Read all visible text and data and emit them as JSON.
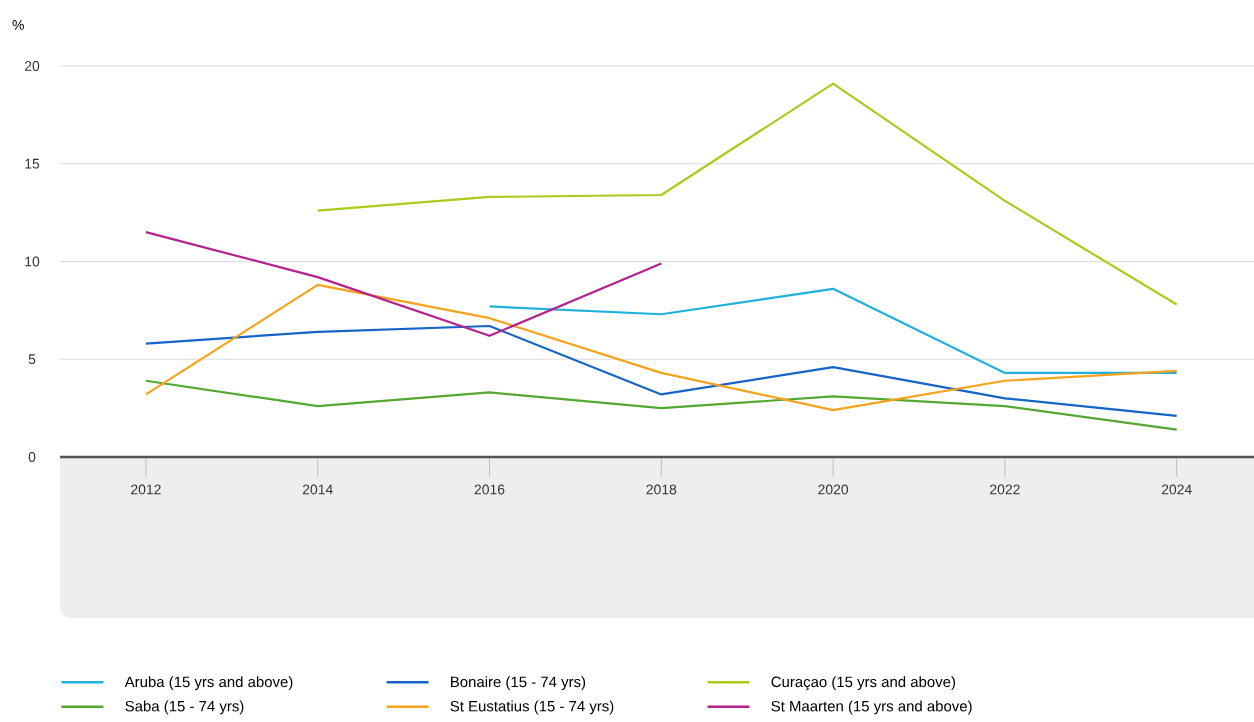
{
  "chart_data": {
    "type": "line",
    "ylabel": "%",
    "x": [
      2012,
      2014,
      2016,
      2018,
      2020,
      2022,
      2024
    ],
    "xlim": [
      2011,
      2024.9
    ],
    "xticks": [
      2012,
      2014,
      2016,
      2018,
      2020,
      2022,
      2024
    ],
    "ylim": [
      0,
      20
    ],
    "yticks": [
      0,
      5,
      10,
      15,
      20
    ],
    "grid": "y",
    "legend": "bottom",
    "line_style": "solid",
    "marker": "none",
    "series": [
      {
        "name": "Aruba (15 yrs and above)",
        "color": "#1fb1dc",
        "values": [
          null,
          null,
          7.7,
          7.3,
          8.6,
          4.3,
          4.3
        ]
      },
      {
        "name": "Bonaire (15 - 74 yrs)",
        "color": "#1565c8",
        "values": [
          5.8,
          6.4,
          6.7,
          3.2,
          4.6,
          3.0,
          2.1
        ]
      },
      {
        "name": "Curaçao (15 yrs and above)",
        "color": "#a8cc1c",
        "values": [
          null,
          12.6,
          13.3,
          13.4,
          19.1,
          13.1,
          7.8
        ]
      },
      {
        "name": "Saba (15 - 74 yrs)",
        "color": "#53a831",
        "values": [
          3.9,
          2.6,
          3.3,
          2.5,
          3.1,
          2.6,
          1.4
        ]
      },
      {
        "name": "St Eustatius (15 - 74 yrs)",
        "color": "#f7a21b",
        "values": [
          3.2,
          8.8,
          7.1,
          4.3,
          2.4,
          3.9,
          4.4
        ]
      },
      {
        "name": "St Maarten (15 yrs and above)",
        "color": "#b5218e",
        "values": [
          11.5,
          9.2,
          6.2,
          9.9,
          null,
          null,
          null
        ]
      }
    ]
  }
}
